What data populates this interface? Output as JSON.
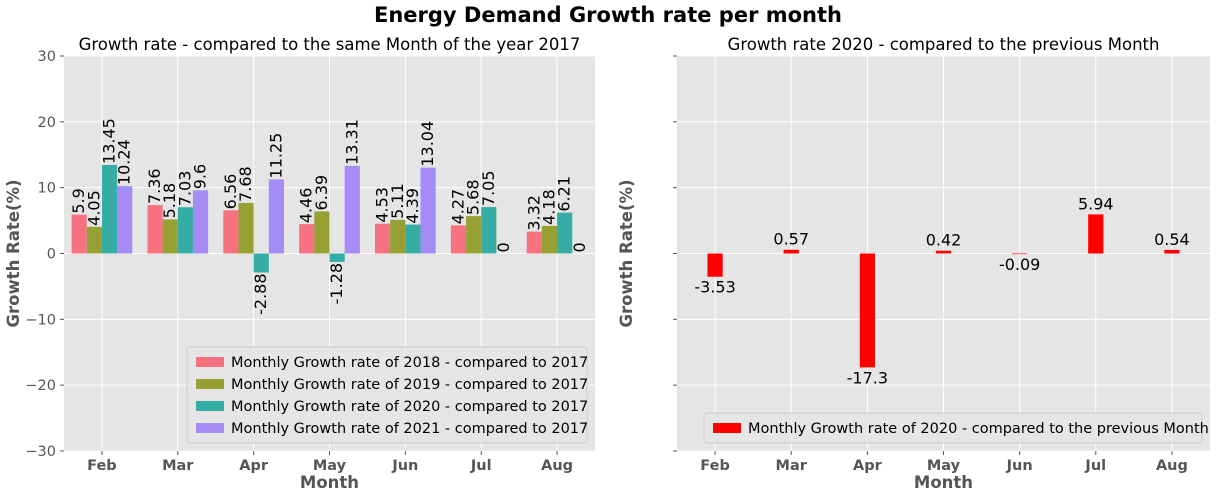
{
  "figure_title": "Energy Demand Growth rate per month",
  "chart_data": [
    {
      "type": "bar",
      "title": "Growth rate -  compared to the same Month of the year 2017",
      "xlabel": "Month",
      "ylabel": "Growth Rate(%)",
      "ylim": [
        -30,
        30
      ],
      "yticks": [
        -30,
        -20,
        -10,
        0,
        10,
        20,
        30
      ],
      "grid": true,
      "legend_position": "lower-right",
      "categories": [
        "Feb",
        "Mar",
        "Apr",
        "May",
        "Jun",
        "Jul",
        "Aug"
      ],
      "series": [
        {
          "name": "Monthly Growth rate of 2018 - compared to 2017",
          "color": "#f67280",
          "values": [
            5.9,
            7.36,
            6.56,
            4.46,
            4.53,
            4.27,
            3.32
          ],
          "labels": [
            "5.9",
            "7.36",
            "6.56",
            "4.46",
            "4.53",
            "4.27",
            "3.32"
          ]
        },
        {
          "name": "Monthly Growth rate of 2019 - compared to 2017",
          "color": "#97a033",
          "values": [
            4.05,
            5.18,
            7.68,
            6.39,
            5.11,
            5.68,
            4.18
          ],
          "labels": [
            "4.05",
            "5.18",
            "7.68",
            "6.39",
            "5.11",
            "5.68",
            "4.18"
          ]
        },
        {
          "name": "Monthly Growth rate of 2020 - compared to 2017",
          "color": "#36ada4",
          "values": [
            13.45,
            7.03,
            -2.88,
            -1.28,
            4.39,
            7.05,
            6.21
          ],
          "labels": [
            "13.45",
            "7.03",
            "-2.88",
            "-1.28",
            "4.39",
            "7.05",
            "6.21"
          ]
        },
        {
          "name": "Monthly Growth rate of 2021 - compared to 2017",
          "color": "#a48cf4",
          "values": [
            10.24,
            9.6,
            11.25,
            13.31,
            13.04,
            0,
            0
          ],
          "labels": [
            "10.24",
            "9.6",
            "11.25",
            "13.31",
            "13.04",
            "0",
            "0"
          ]
        }
      ]
    },
    {
      "type": "bar",
      "title": "Growth rate 2020 - compared to the previous Month",
      "xlabel": "Month",
      "ylabel": "Growth Rate(%)",
      "ylim": [
        -30,
        30
      ],
      "grid": true,
      "legend_position": "lower-right",
      "categories": [
        "Feb",
        "Mar",
        "Apr",
        "May",
        "Jun",
        "Jul",
        "Aug"
      ],
      "series": [
        {
          "name": "Monthly Growth rate of 2020 - compared to the previous Month",
          "color": "#ff0000",
          "values": [
            -3.53,
            0.57,
            -17.3,
            0.42,
            -0.09,
            5.94,
            0.54
          ],
          "labels": [
            "-3.53",
            "0.57",
            "-17.3",
            "0.42",
            "-0.09",
            "5.94",
            "0.54"
          ]
        }
      ]
    }
  ]
}
